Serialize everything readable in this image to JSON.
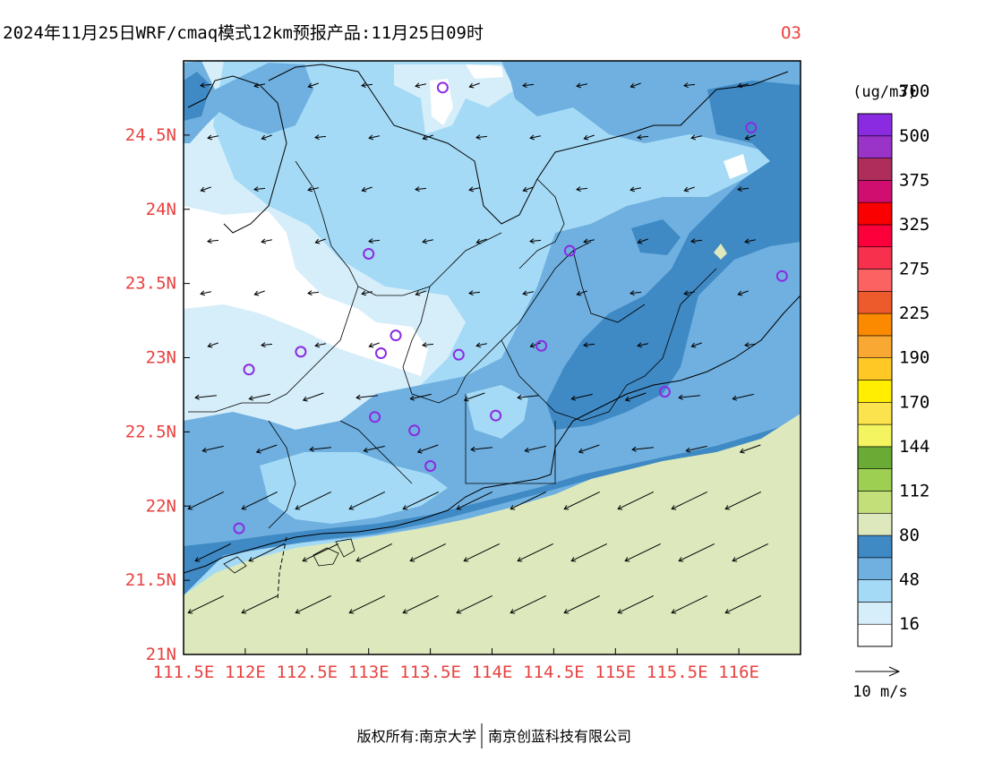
{
  "title": {
    "text": "2024年11月25日WRF/cmaq模式12km预报产品:11月25日09时",
    "species": "O3",
    "species_color": "#e8423f"
  },
  "map": {
    "lon_range": [
      111.5,
      116.5
    ],
    "lat_range": [
      21.0,
      25.0
    ],
    "x_ticks": [
      {
        "value": 111.5,
        "label": "111.5E"
      },
      {
        "value": 112.0,
        "label": "112E"
      },
      {
        "value": 112.5,
        "label": "112.5E"
      },
      {
        "value": 113.0,
        "label": "113E"
      },
      {
        "value": 113.5,
        "label": "113.5E"
      },
      {
        "value": 114.0,
        "label": "114E"
      },
      {
        "value": 114.5,
        "label": "114.5E"
      },
      {
        "value": 115.0,
        "label": "115E"
      },
      {
        "value": 115.5,
        "label": "115.5E"
      },
      {
        "value": 116.0,
        "label": "116E"
      }
    ],
    "y_ticks": [
      {
        "value": 21.0,
        "label": "21N"
      },
      {
        "value": 21.5,
        "label": "21.5N"
      },
      {
        "value": 22.0,
        "label": "22N"
      },
      {
        "value": 22.5,
        "label": "22.5N"
      },
      {
        "value": 23.0,
        "label": "23N"
      },
      {
        "value": 23.5,
        "label": "23.5N"
      },
      {
        "value": 24.0,
        "label": "24N"
      },
      {
        "value": 24.5,
        "label": "24.5N"
      }
    ],
    "tick_label_color": "#e8423f",
    "stations": [
      {
        "lon": 113.6,
        "lat": 24.82
      },
      {
        "lon": 116.1,
        "lat": 24.55
      },
      {
        "lon": 113.0,
        "lat": 23.7
      },
      {
        "lon": 114.63,
        "lat": 23.72
      },
      {
        "lon": 116.35,
        "lat": 23.55
      },
      {
        "lon": 112.45,
        "lat": 23.04
      },
      {
        "lon": 113.22,
        "lat": 23.15
      },
      {
        "lon": 113.1,
        "lat": 23.03
      },
      {
        "lon": 113.73,
        "lat": 23.02
      },
      {
        "lon": 114.4,
        "lat": 23.08
      },
      {
        "lon": 112.03,
        "lat": 22.92
      },
      {
        "lon": 115.4,
        "lat": 22.77
      },
      {
        "lon": 113.05,
        "lat": 22.6
      },
      {
        "lon": 113.37,
        "lat": 22.51
      },
      {
        "lon": 114.03,
        "lat": 22.61
      },
      {
        "lon": 113.5,
        "lat": 22.27
      },
      {
        "lon": 111.95,
        "lat": 21.85
      }
    ]
  },
  "colorbar": {
    "unit": "(ug/m3)",
    "colors": [
      "#ffffff",
      "#d6eefa",
      "#a4daf6",
      "#6fb0e0",
      "#3f89c4",
      "#dde9bd",
      "#c3df7a",
      "#9dcf53",
      "#6aab35",
      "#f3f45f",
      "#fbe34e",
      "#ffee00",
      "#ffc824",
      "#f9a833",
      "#fb8a00",
      "#ed5a2b",
      "#fb6363",
      "#f7304e",
      "#fb003b",
      "#fb0000",
      "#cf0e6f",
      "#ae2d5b",
      "#9a33c8",
      "#8a2be2"
    ],
    "labels": [
      "16",
      "48",
      "80",
      "112",
      "144",
      "170",
      "190",
      "225",
      "275",
      "325",
      "375",
      "500",
      "700"
    ]
  },
  "wind_legend": {
    "label": "10 m/s"
  },
  "footer": {
    "left": "版权所有:南京大学",
    "right": "南京创蓝科技有限公司"
  }
}
